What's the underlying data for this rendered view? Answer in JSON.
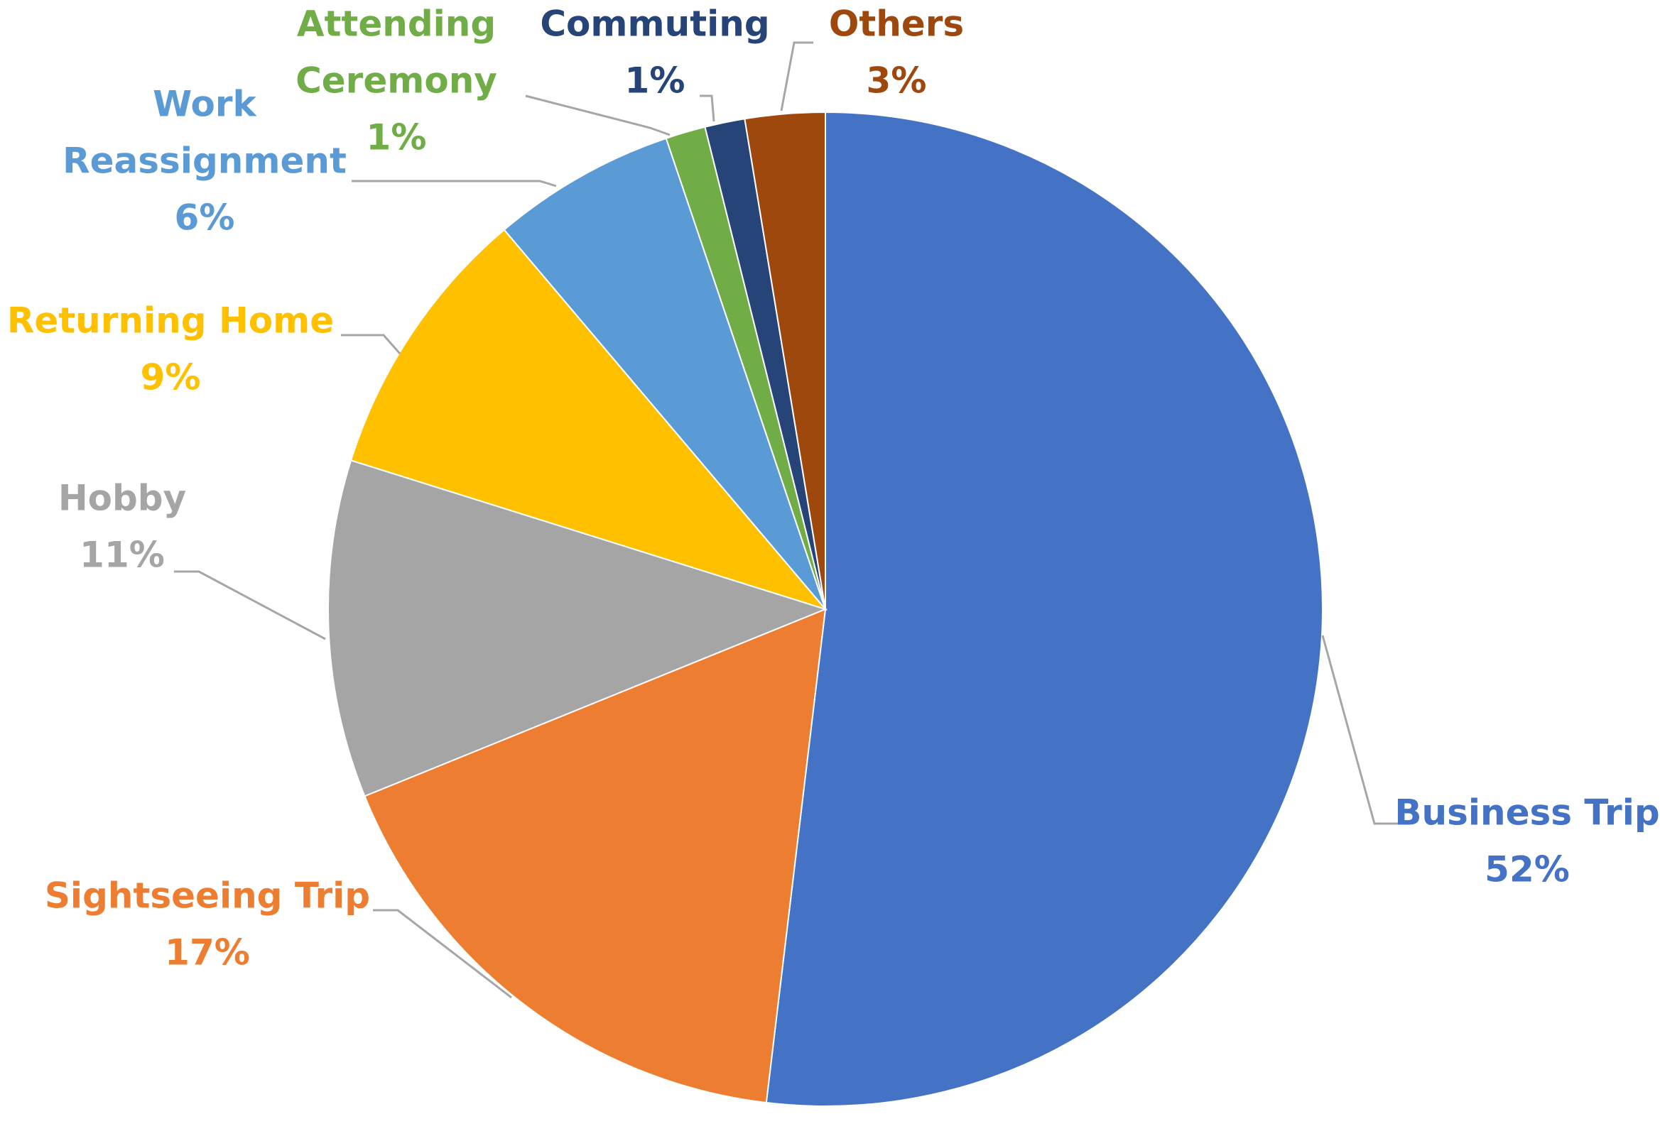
{
  "chart_data": {
    "type": "pie",
    "title": "",
    "start": "12 o'clock",
    "direction": "clockwise",
    "slices": [
      {
        "name": "Business Trip",
        "value": 52,
        "value_label": "52%",
        "name_lines": [
          "Business Trip"
        ],
        "color": "#4472C4"
      },
      {
        "name": "Sightseeing Trip",
        "value": 17,
        "value_label": "17%",
        "name_lines": [
          "Sightseeing Trip"
        ],
        "color": "#ED7D31"
      },
      {
        "name": "Hobby",
        "value": 11,
        "value_label": "11%",
        "name_lines": [
          "Hobby"
        ],
        "color": "#A5A5A5"
      },
      {
        "name": "Returning Home",
        "value": 9,
        "value_label": "9%",
        "name_lines": [
          "Returning Home"
        ],
        "color": "#FFC000"
      },
      {
        "name": "Work Reassignment",
        "value": 6,
        "value_label": "6%",
        "name_lines": [
          "Work",
          "Reassignment"
        ],
        "color": "#5B9BD5"
      },
      {
        "name": "Attending Ceremony",
        "value": 1.3,
        "value_label": "1%",
        "name_lines": [
          "Attending",
          "Ceremony"
        ],
        "color": "#70AD47"
      },
      {
        "name": "Commuting",
        "value": 1.3,
        "value_label": "1%",
        "name_lines": [
          "Commuting"
        ],
        "color": "#264478"
      },
      {
        "name": "Others",
        "value": 2.6,
        "value_label": "3%",
        "name_lines": [
          "Others"
        ],
        "color": "#9E480E"
      }
    ],
    "label_colors": {
      "Business Trip": "#4472C4",
      "Sightseeing Trip": "#ED7D31",
      "Hobby": "#A5A5A5",
      "Returning Home": "#FFC000",
      "Work Reassignment": "#5B9BD5",
      "Attending Ceremony": "#70AD47",
      "Commuting": "#264478",
      "Others": "#9E480E"
    },
    "leader_line_color": "#A6A6A6"
  }
}
